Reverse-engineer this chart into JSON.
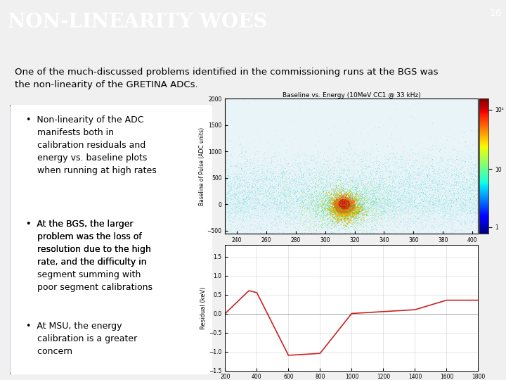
{
  "title": "Non-Linearity Woes",
  "slide_number": "16",
  "header_bg": "#4a4e62",
  "header_accent_teal": "#4a9a9a",
  "header_accent_light": "#aac8c8",
  "header_accent_gray": "#b0b8c0",
  "body_bg": "#f0f0f0",
  "content_bg": "#ffffff",
  "subtitle_text": "One of the much-discussed problems identified in the commissioning runs at the BGS was\nthe non-linearity of the GRETINA ADCs.",
  "bullet1": "•  Non-linearity of the ADC\n    manifests both in\n    calibration residuals and\n    energy vs. baseline plots\n    when running at high rates",
  "bullet2a": "•  At the BGS, the larger\n    problem was the loss of\n    resolution due to the high\n    rate, and the difficulty in\n    ",
  "bullet2_italic": "segment summing",
  "bullet2b": " with\n    poor segment calibrations",
  "bullet3": "•  At MSU, the energy\n    calibration is a greater\n    concern",
  "box_border_color": "#7b3f8c",
  "text_color": "#000000",
  "header_text_color": "#ffffff",
  "font_size_title": 20,
  "font_size_subtitle": 9.5,
  "font_size_bullet": 9,
  "plot1_title": "Baseline vs. Energy (10MeV CC1 @ 33 kHz)",
  "residual_line_color": "#cc2222",
  "scatter_bg_color": "#ffffff",
  "cbar_labels": [
    "1",
    "10",
    "10²"
  ],
  "res_x": [
    200,
    350,
    400,
    600,
    800,
    1000,
    1200,
    1400,
    1600,
    1800
  ],
  "res_y": [
    0.0,
    0.6,
    0.55,
    -1.1,
    -1.05,
    0.0,
    0.05,
    0.1,
    0.35,
    0.35
  ]
}
